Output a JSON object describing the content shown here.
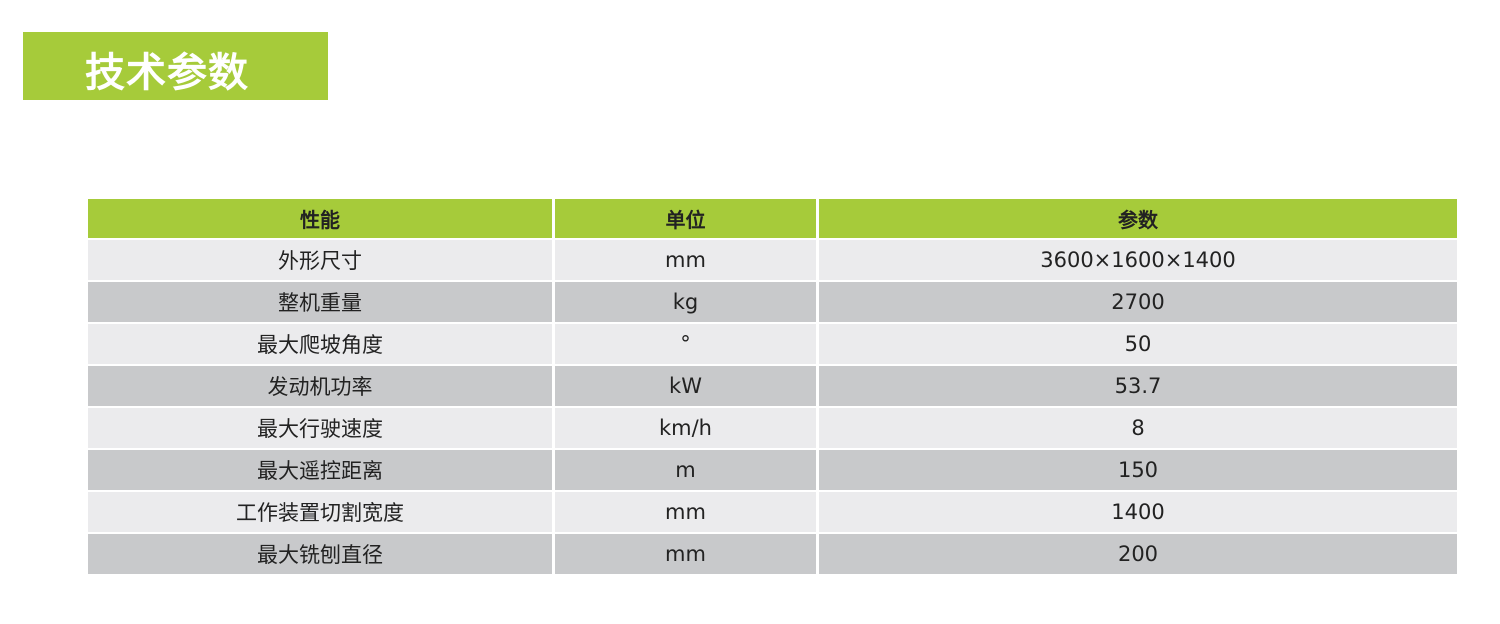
{
  "title": "技术参数",
  "colors": {
    "accent": "#a6cb3a",
    "row_light": "#ebebed",
    "row_dark": "#c8c9cb"
  },
  "table": {
    "headers": [
      "性能",
      "单位",
      "参数"
    ],
    "rows": [
      [
        "外形尺寸",
        "mm",
        "3600×1600×1400"
      ],
      [
        "整机重量",
        "kg",
        "2700"
      ],
      [
        "最大爬坡角度",
        "°",
        "50"
      ],
      [
        "发动机功率",
        "kW",
        "53.7"
      ],
      [
        "最大行驶速度",
        "km/h",
        "8"
      ],
      [
        "最大遥控距离",
        "m",
        "150"
      ],
      [
        "工作装置切割宽度",
        "mm",
        "1400"
      ],
      [
        "最大铣刨直径",
        "mm",
        "200"
      ]
    ]
  }
}
